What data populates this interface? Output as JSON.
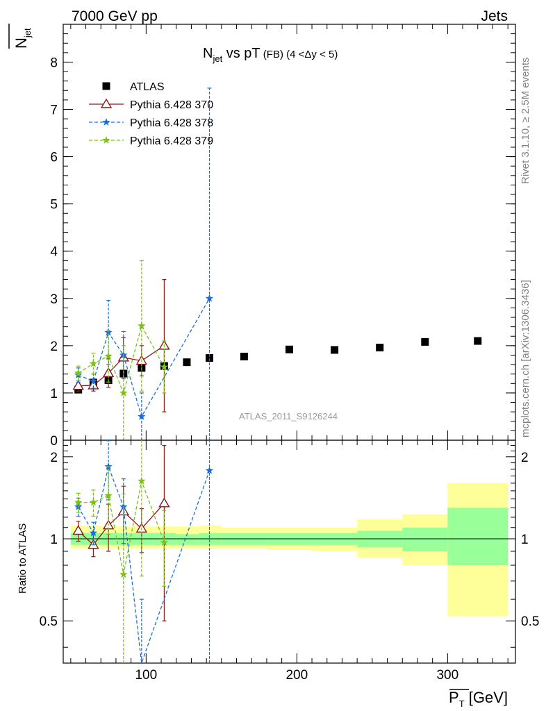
{
  "header": {
    "left": "7000 GeV pp",
    "right": "Jets"
  },
  "side_labels": {
    "rivet": "Rivet 3.1.10, ≥ 2.5M events",
    "mcplots": "mcplots.cern.ch [arXiv:1306.3436]"
  },
  "chart_data": [
    {
      "type": "scatter",
      "title_main": "N",
      "title_sub": "jet",
      "title_rest": " vs pT",
      "title_small": " (FB) (4 <Δy < 5)",
      "ylabel_main": "N",
      "ylabel_sub": "jet",
      "watermark": "ATLAS_2011_S9126244",
      "xlim": [
        45,
        345
      ],
      "ylim": [
        0,
        8.8
      ],
      "yticks": [
        0,
        1,
        2,
        3,
        4,
        5,
        6,
        7,
        8
      ],
      "legend_position": "top-left",
      "series": [
        {
          "name": "ATLAS",
          "color": "#000000",
          "marker": "square",
          "x": [
            55,
            65,
            75,
            85,
            97,
            112,
            127,
            142,
            165,
            195,
            225,
            255,
            285,
            320
          ],
          "y": [
            1.07,
            1.22,
            1.27,
            1.41,
            1.53,
            1.57,
            1.65,
            1.74,
            1.77,
            1.92,
            1.91,
            1.96,
            2.08,
            2.1
          ],
          "err": [
            0.05,
            0.05,
            0.05,
            0.05,
            0.05,
            0.05,
            0.04,
            0.04,
            0.04,
            0.04,
            0.04,
            0.04,
            0.04,
            0.04
          ]
        },
        {
          "name": "Pythia 6.428 370",
          "color": "#8b1a1a",
          "marker": "triangle",
          "dash": "solid",
          "x": [
            55,
            65,
            75,
            85,
            97,
            112
          ],
          "y": [
            1.15,
            1.16,
            1.42,
            1.75,
            1.68,
            2.0
          ],
          "err": [
            0.12,
            0.12,
            0.3,
            0.42,
            0.32,
            1.4
          ]
        },
        {
          "name": "Pythia 6.428 378",
          "color": "#1a6fd6",
          "marker": "star",
          "dash": "dashed",
          "x": [
            55,
            65,
            75,
            85,
            97,
            142
          ],
          "y": [
            1.38,
            1.25,
            2.28,
            1.8,
            0.5,
            3.0
          ],
          "err": [
            0.15,
            0.15,
            0.68,
            0.5,
            0.5,
            4.45
          ]
        },
        {
          "name": "Pythia 6.428 379",
          "color": "#7cc018",
          "marker": "star",
          "dash": "dashed",
          "x": [
            55,
            65,
            75,
            85,
            97,
            112
          ],
          "y": [
            1.42,
            1.62,
            1.78,
            1.0,
            2.42,
            1.55
          ],
          "err": [
            0.15,
            0.22,
            0.55,
            1.0,
            1.38,
            0.55
          ]
        }
      ]
    },
    {
      "type": "scatter",
      "ylabel": "Ratio to ATLAS",
      "xlabel_main": "P",
      "xlabel_sub": "T",
      "xlabel_unit": " [GeV]",
      "xlim": [
        45,
        345
      ],
      "ylim": [
        0.35,
        2.3
      ],
      "xticks": [
        100,
        200,
        300
      ],
      "yticks": [
        0.5,
        1,
        2
      ],
      "ytick_labels": [
        "0.5",
        "1",
        "2"
      ],
      "reference_line": 1,
      "bands": [
        {
          "x0": 50,
          "x1": 60,
          "stat": [
            0.95,
            1.05
          ],
          "total": [
            0.92,
            1.12
          ]
        },
        {
          "x0": 60,
          "x1": 70,
          "stat": [
            0.95,
            1.05
          ],
          "total": [
            0.92,
            1.12
          ]
        },
        {
          "x0": 70,
          "x1": 80,
          "stat": [
            0.95,
            1.05
          ],
          "total": [
            0.92,
            1.11
          ]
        },
        {
          "x0": 80,
          "x1": 90,
          "stat": [
            0.95,
            1.05
          ],
          "total": [
            0.92,
            1.11
          ]
        },
        {
          "x0": 90,
          "x1": 105,
          "stat": [
            0.95,
            1.05
          ],
          "total": [
            0.92,
            1.11
          ]
        },
        {
          "x0": 105,
          "x1": 120,
          "stat": [
            0.95,
            1.05
          ],
          "total": [
            0.92,
            1.11
          ]
        },
        {
          "x0": 120,
          "x1": 135,
          "stat": [
            0.95,
            1.04
          ],
          "total": [
            0.92,
            1.11
          ]
        },
        {
          "x0": 135,
          "x1": 150,
          "stat": [
            0.95,
            1.05
          ],
          "total": [
            0.92,
            1.12
          ]
        },
        {
          "x0": 150,
          "x1": 180,
          "stat": [
            0.95,
            1.05
          ],
          "total": [
            0.92,
            1.1
          ]
        },
        {
          "x0": 180,
          "x1": 210,
          "stat": [
            0.95,
            1.05
          ],
          "total": [
            0.91,
            1.1
          ]
        },
        {
          "x0": 210,
          "x1": 240,
          "stat": [
            0.95,
            1.05
          ],
          "total": [
            0.9,
            1.1
          ]
        },
        {
          "x0": 240,
          "x1": 270,
          "stat": [
            0.93,
            1.07
          ],
          "total": [
            0.85,
            1.18
          ]
        },
        {
          "x0": 270,
          "x1": 300,
          "stat": [
            0.9,
            1.1
          ],
          "total": [
            0.8,
            1.23
          ]
        },
        {
          "x0": 300,
          "x1": 340,
          "stat": [
            0.8,
            1.3
          ],
          "total": [
            0.52,
            1.6
          ]
        }
      ],
      "series": [
        {
          "name": "Pythia 6.428 370",
          "color": "#8b1a1a",
          "marker": "triangle",
          "dash": "solid",
          "x": [
            55,
            65,
            75,
            85,
            97,
            112
          ],
          "y": [
            1.07,
            0.95,
            1.12,
            1.26,
            1.09,
            1.35
          ],
          "err": [
            0.09,
            0.09,
            0.22,
            0.3,
            0.2,
            0.85
          ]
        },
        {
          "name": "Pythia 6.428 378",
          "color": "#1a6fd6",
          "marker": "star",
          "dash": "dashed",
          "x": [
            55,
            65,
            75,
            85,
            97,
            142
          ],
          "y": [
            1.31,
            1.05,
            1.84,
            1.31,
            0.3,
            1.78
          ],
          "err": [
            0.1,
            0.1,
            0.45,
            0.35,
            0.3,
            2.0
          ]
        },
        {
          "name": "Pythia 6.428 379",
          "color": "#7cc018",
          "marker": "star",
          "dash": "dashed",
          "x": [
            55,
            65,
            75,
            85,
            97,
            112
          ],
          "y": [
            1.36,
            1.36,
            1.44,
            0.74,
            1.63,
            0.97
          ],
          "err": [
            0.11,
            0.15,
            0.4,
            0.72,
            0.9,
            0.3
          ]
        }
      ]
    }
  ]
}
